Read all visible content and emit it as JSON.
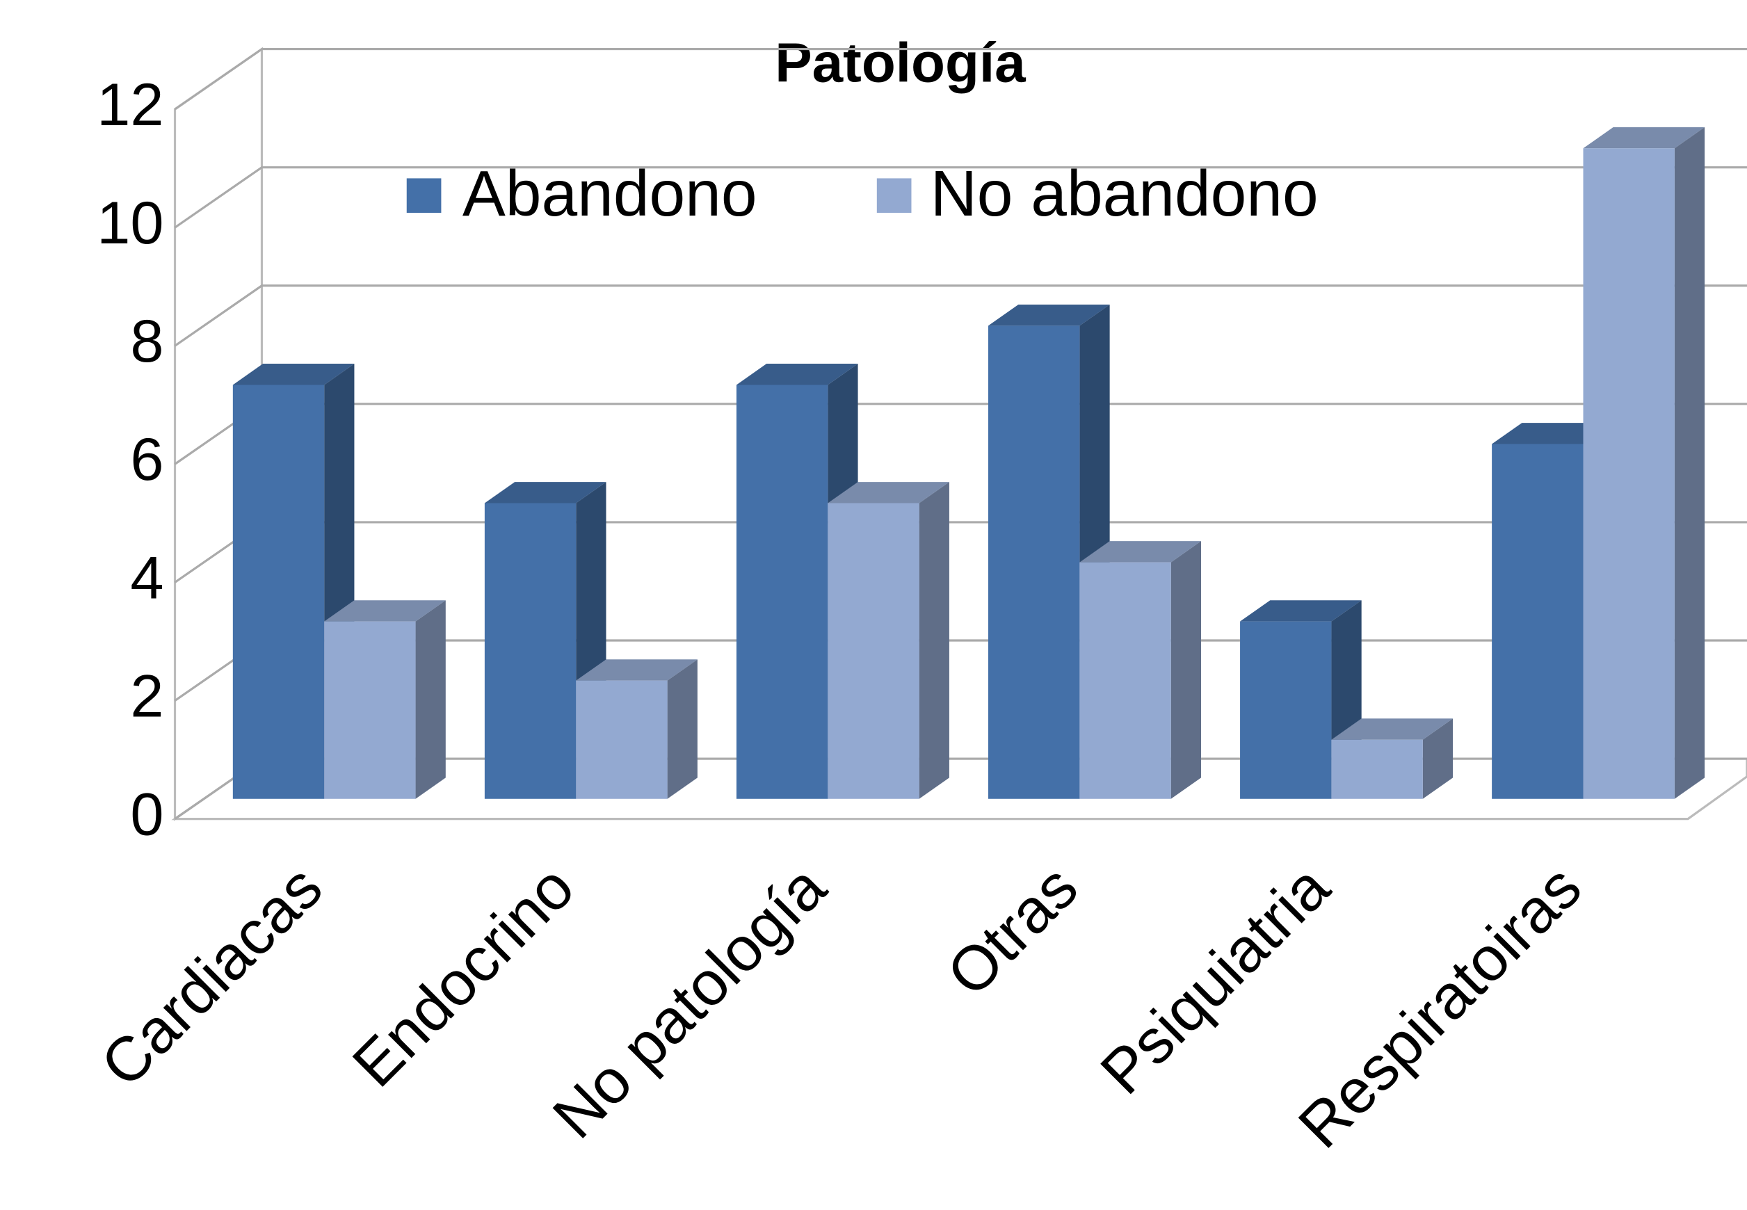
{
  "chart_data": {
    "type": "bar3d",
    "title": "Patología",
    "categories": [
      "Cardiacas",
      "Endocrino",
      "No patología",
      "Otras",
      "Psiquiatria",
      "Respiratoiras"
    ],
    "series": [
      {
        "name": "Abandono",
        "color": "#4470a8",
        "values": [
          7,
          5,
          7,
          8,
          3,
          6
        ]
      },
      {
        "name": "No abandono",
        "color": "#93a9d1",
        "values": [
          3,
          2,
          5,
          4,
          1,
          11
        ]
      }
    ],
    "ylim": [
      0,
      12
    ],
    "yticks": [
      0,
      2,
      4,
      6,
      8,
      10,
      12
    ],
    "grid": true,
    "legend": "top"
  }
}
